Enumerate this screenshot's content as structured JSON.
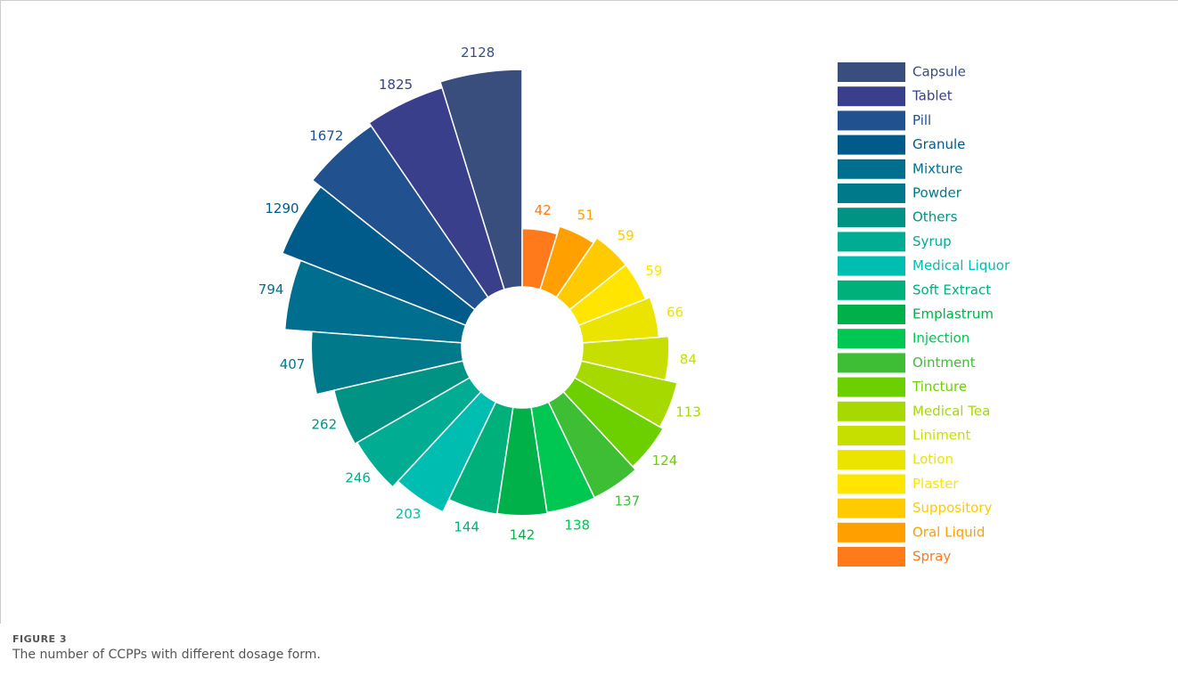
{
  "chart_data": {
    "type": "polar_bar",
    "log_scale": true,
    "categories": [
      "Capsule",
      "Tablet",
      "Pill",
      "Granule",
      "Mixture",
      "Powder",
      "Others",
      "Syrup",
      "Medical Liquor",
      "Soft Extract",
      "Emplastrum",
      "Injection",
      "Ointment",
      "Tincture",
      "Medical Tea",
      "Liniment",
      "Lotion",
      "Plaster",
      "Suppository",
      "Oral Liquid",
      "Spray"
    ],
    "values": [
      2128,
      1825,
      1672,
      1290,
      794,
      407,
      262,
      246,
      203,
      144,
      142,
      138,
      137,
      124,
      113,
      84,
      66,
      59,
      59,
      51,
      42
    ],
    "colors": [
      "#3a4e7e",
      "#393f8a",
      "#22518f",
      "#005b8b",
      "#006f8f",
      "#00798a",
      "#009383",
      "#00ad92",
      "#00bdb2",
      "#00b07b",
      "#00b14a",
      "#00c652",
      "#3dbe34",
      "#6ccf00",
      "#a5d900",
      "#c7df00",
      "#ebe300",
      "#ffe500",
      "#ffcb00",
      "#ffa000",
      "#ff7a1a"
    ]
  },
  "caption": {
    "label": "FIGURE 3",
    "text": "The number of CCPPs with different dosage form."
  }
}
